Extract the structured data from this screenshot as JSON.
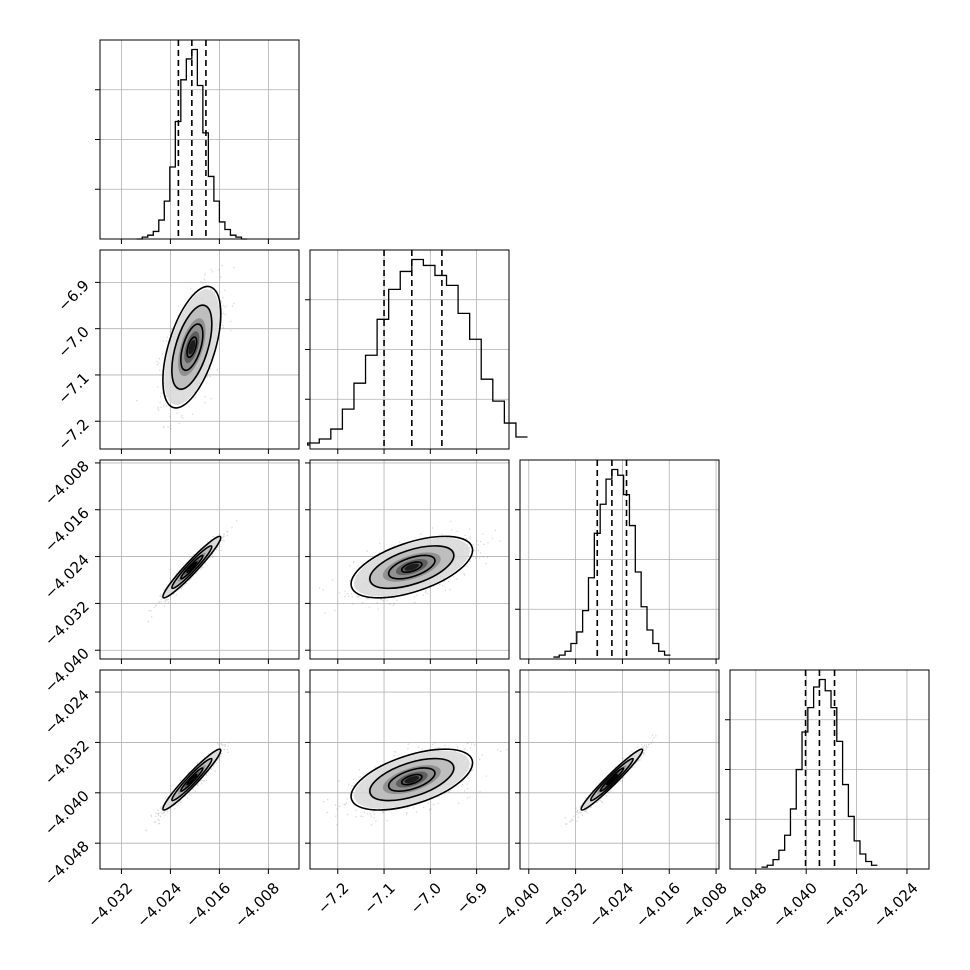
{
  "chart_data": {
    "type": "corner",
    "n_params": 4,
    "grid": true,
    "diag_quantiles": [
      0.16,
      0.5,
      0.84
    ],
    "params": [
      {
        "range": [
          -4.0355,
          -4.003
        ],
        "ticks": [
          -4.032,
          -4.024,
          -4.016,
          -4.008
        ],
        "tick_labels": [
          "−4.032",
          "−4.024",
          "−4.016",
          "−4.008"
        ],
        "median": -4.0205,
        "quantiles": [
          -4.0227,
          -4.0205,
          -4.0182
        ],
        "hist": [
          0,
          1,
          2,
          4,
          10,
          20,
          38,
          62,
          84,
          95,
          100,
          81,
          56,
          33,
          20,
          9,
          5,
          2,
          1,
          0
        ]
      },
      {
        "range": [
          -7.26,
          -6.83
        ],
        "ticks": [
          -7.2,
          -7.1,
          -7.0,
          -6.9
        ],
        "tick_labels": [
          "−7.2",
          "−7.1",
          "−7.0",
          "−6.9"
        ],
        "median": -7.04,
        "quantiles": [
          -7.1,
          -7.04,
          -6.975
        ],
        "hist": [
          2,
          3,
          5,
          10,
          20,
          33,
          47,
          65,
          80,
          89,
          95,
          92,
          87,
          82,
          68,
          55,
          35,
          24,
          13,
          6
        ]
      },
      {
        "range": [
          -4.0415,
          -4.0075
        ],
        "ticks": [
          -4.04,
          -4.032,
          -4.024,
          -4.016,
          -4.008
        ],
        "tick_labels": [
          "−4.040",
          "−4.032",
          "−4.024",
          "−4.016",
          "−4.008"
        ],
        "median": -4.0258,
        "quantiles": [
          -4.0283,
          -4.0258,
          -4.0233
        ],
        "hist": [
          1,
          2,
          4,
          8,
          14,
          25,
          42,
          65,
          80,
          93,
          98,
          95,
          85,
          69,
          45,
          27,
          15,
          8,
          4,
          2
        ]
      },
      {
        "range": [
          -4.0521,
          -4.0205
        ],
        "ticks": [
          -4.048,
          -4.04,
          -4.032,
          -4.024
        ],
        "tick_labels": [
          "−4.048",
          "−4.040",
          "−4.032",
          "−4.024"
        ],
        "median": -4.0379,
        "quantiles": [
          -4.0401,
          -4.0379,
          -4.0355
        ],
        "hist": [
          1,
          2,
          5,
          10,
          18,
          32,
          53,
          73,
          86,
          97,
          101,
          95,
          86,
          68,
          45,
          28,
          15,
          8,
          4,
          2
        ]
      }
    ],
    "pairs": [
      {
        "row": 1,
        "col": 0,
        "correlation": 0.55
      },
      {
        "row": 2,
        "col": 0,
        "correlation": 0.96
      },
      {
        "row": 2,
        "col": 1,
        "correlation": 0.55
      },
      {
        "row": 3,
        "col": 0,
        "correlation": 0.96
      },
      {
        "row": 3,
        "col": 1,
        "correlation": 0.55
      },
      {
        "row": 3,
        "col": 2,
        "correlation": 0.97
      }
    ],
    "colors": {
      "contour": "#000000",
      "points": "#888888",
      "hist": "#000000",
      "grid": "#b0b0b0"
    }
  }
}
